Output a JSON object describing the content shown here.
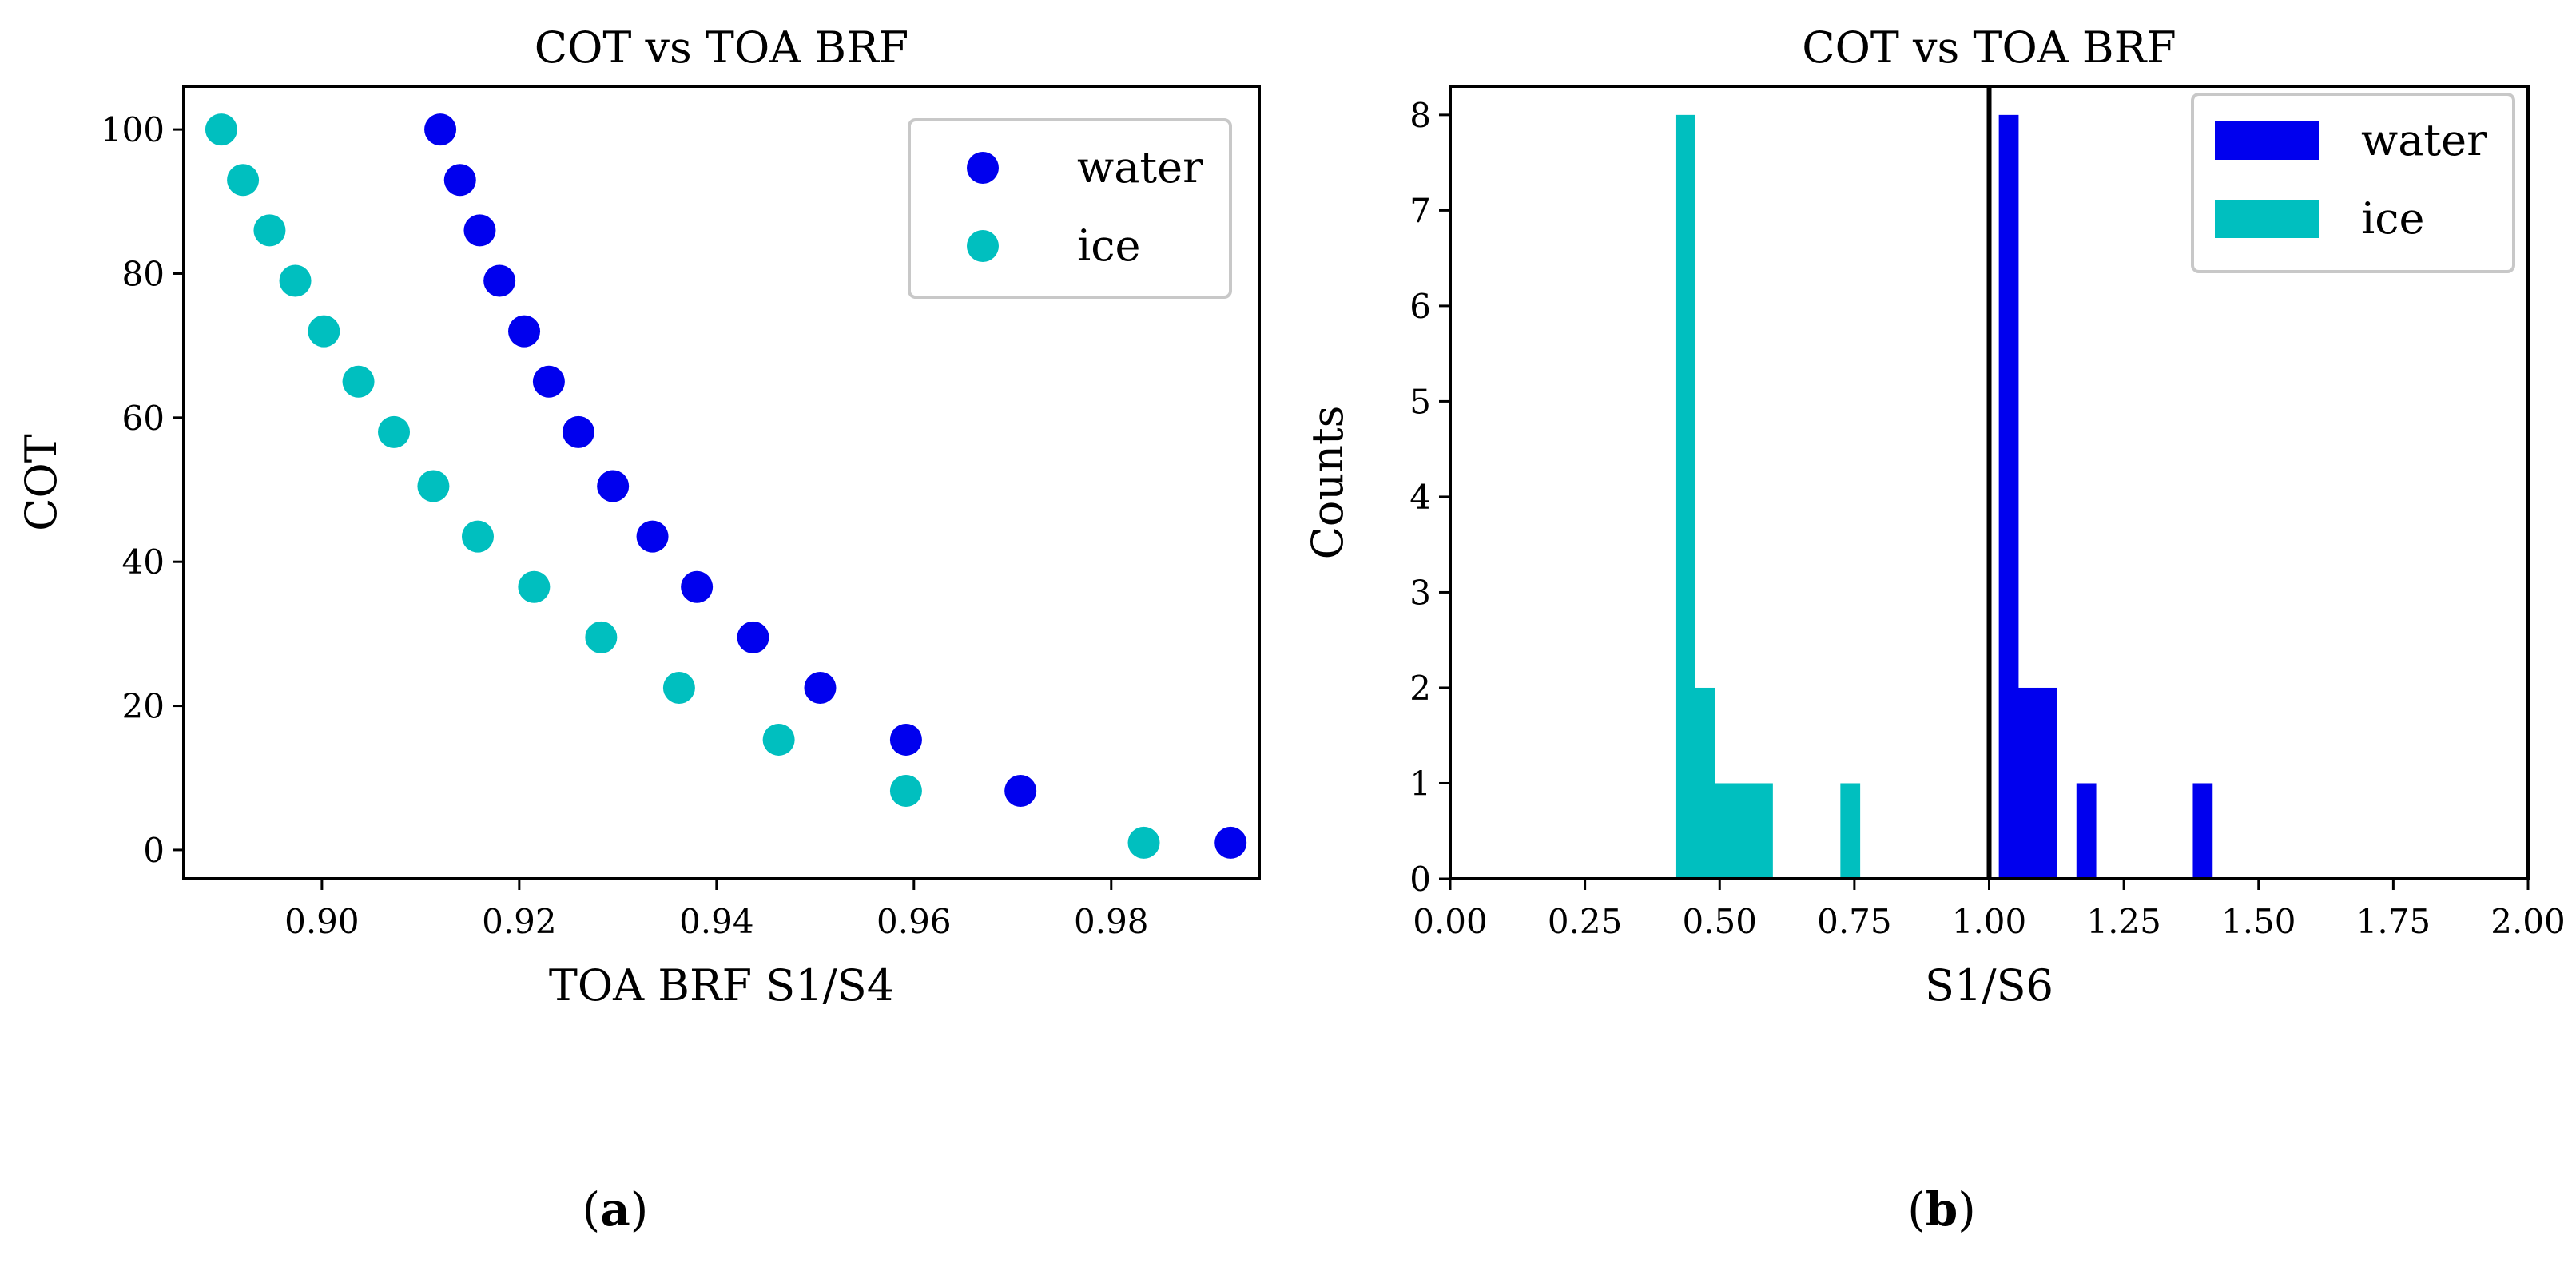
{
  "chart_data": [
    {
      "type": "scatter",
      "title": "COT vs TOA BRF",
      "xlabel": "TOA BRF S1/S4",
      "ylabel": "COT",
      "xlim": [
        0.886,
        0.995
      ],
      "ylim": [
        -4,
        106
      ],
      "xticks": [
        0.9,
        0.92,
        0.94,
        0.96,
        0.98
      ],
      "xtick_labels": [
        "0.90",
        "0.92",
        "0.94",
        "0.96",
        "0.98"
      ],
      "yticks": [
        0,
        20,
        40,
        60,
        80,
        100
      ],
      "ytick_labels": [
        "0",
        "20",
        "40",
        "60",
        "80",
        "100"
      ],
      "grid": false,
      "legend": "top-right",
      "series": [
        {
          "name": "water",
          "color": "#0000ee",
          "points": [
            [
              0.912,
              100
            ],
            [
              0.914,
              93
            ],
            [
              0.916,
              86
            ],
            [
              0.918,
              79
            ],
            [
              0.9205,
              72
            ],
            [
              0.923,
              65
            ],
            [
              0.926,
              58
            ],
            [
              0.9295,
              50.5
            ],
            [
              0.9335,
              43.5
            ],
            [
              0.938,
              36.5
            ],
            [
              0.9437,
              29.5
            ],
            [
              0.9505,
              22.5
            ],
            [
              0.9592,
              15.3
            ],
            [
              0.9708,
              8.2
            ],
            [
              0.9921,
              1
            ]
          ]
        },
        {
          "name": "ice",
          "color": "#00bfbf",
          "points": [
            [
              0.8898,
              100
            ],
            [
              0.892,
              93
            ],
            [
              0.8947,
              86
            ],
            [
              0.8973,
              79
            ],
            [
              0.9002,
              72
            ],
            [
              0.9037,
              65
            ],
            [
              0.9073,
              58
            ],
            [
              0.9113,
              50.5
            ],
            [
              0.9158,
              43.5
            ],
            [
              0.9215,
              36.5
            ],
            [
              0.9283,
              29.5
            ],
            [
              0.9362,
              22.5
            ],
            [
              0.9463,
              15.3
            ],
            [
              0.9592,
              8.2
            ],
            [
              0.9833,
              1
            ]
          ]
        }
      ]
    },
    {
      "type": "bar",
      "subtype": "histogram",
      "title": "COT vs TOA BRF",
      "xlabel": "S1/S6",
      "ylabel": "Counts",
      "xlim": [
        0,
        2
      ],
      "ylim": [
        0,
        8.3
      ],
      "xticks": [
        0,
        0.25,
        0.5,
        0.75,
        1.0,
        1.25,
        1.5,
        1.75,
        2.0
      ],
      "xtick_labels": [
        "0.00",
        "0.25",
        "0.50",
        "0.75",
        "1.00",
        "1.25",
        "1.50",
        "1.75",
        "2.00"
      ],
      "yticks": [
        0,
        1,
        2,
        3,
        4,
        5,
        6,
        7,
        8
      ],
      "ytick_labels": [
        "0",
        "1",
        "2",
        "3",
        "4",
        "5",
        "6",
        "7",
        "8"
      ],
      "grid": false,
      "legend": "top-right",
      "vline": 1.0,
      "series": [
        {
          "name": "water",
          "color": "#0000ee",
          "bins": [
            [
              1.018,
              1.054,
              8
            ],
            [
              1.054,
              1.09,
              2
            ],
            [
              1.09,
              1.126,
              2
            ],
            [
              1.162,
              1.198,
              1
            ],
            [
              1.378,
              1.414,
              1
            ]
          ]
        },
        {
          "name": "ice",
          "color": "#00bfbf",
          "bins": [
            [
              0.418,
              0.454,
              8
            ],
            [
              0.454,
              0.49,
              2
            ],
            [
              0.49,
              0.526,
              1
            ],
            [
              0.526,
              0.562,
              1
            ],
            [
              0.562,
              0.598,
              1
            ],
            [
              0.724,
              0.76,
              1
            ]
          ]
        }
      ]
    }
  ],
  "captions": [
    {
      "open": "(",
      "letter": "a",
      "close": ")"
    },
    {
      "open": "(",
      "letter": "b",
      "close": ")"
    }
  ]
}
